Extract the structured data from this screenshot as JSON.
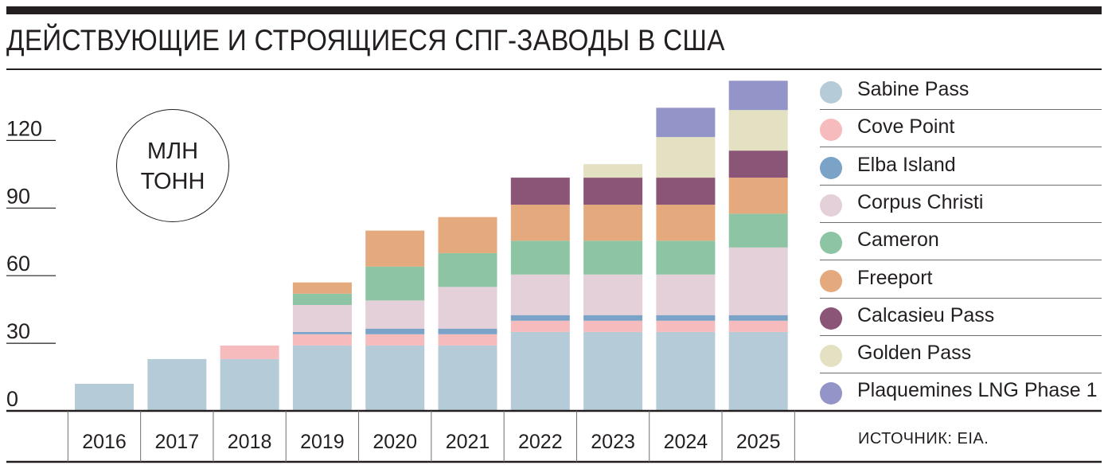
{
  "title": "ДЕЙСТВУЮЩИЕ И СТРОЯЩИЕСЯ СПГ-ЗАВОДЫ В США",
  "unit_line1": "МЛН",
  "unit_line2": "ТОНН",
  "source": "ИСТОЧНИК: EIA.",
  "chart_data": {
    "type": "bar",
    "stacked": true,
    "title": "ДЕЙСТВУЮЩИЕ И СТРОЯЩИЕСЯ СПГ-ЗАВОДЫ В США",
    "xlabel": "",
    "ylabel": "МЛН ТОНН",
    "ylim": [
      0,
      145
    ],
    "yticks": [
      0,
      30,
      60,
      90,
      120
    ],
    "categories": [
      "2016",
      "2017",
      "2018",
      "2019",
      "2020",
      "2021",
      "2022",
      "2023",
      "2024",
      "2025"
    ],
    "legend_position": "right",
    "series": [
      {
        "name": "Sabine Pass",
        "color": "#b5cbd7",
        "values": [
          12,
          23,
          23,
          29,
          29,
          29,
          35,
          35,
          35,
          35
        ]
      },
      {
        "name": "Cove Point",
        "color": "#f6bcbd",
        "values": [
          0,
          0,
          6,
          5,
          5,
          5,
          5,
          5,
          5,
          5
        ]
      },
      {
        "name": "Elba Island",
        "color": "#7ba3c8",
        "values": [
          0,
          0,
          0,
          1,
          2.5,
          2.5,
          2.5,
          2.5,
          2.5,
          2.5
        ]
      },
      {
        "name": "Corpus Christi",
        "color": "#e4d0d9",
        "values": [
          0,
          0,
          0,
          12,
          12.5,
          18.5,
          18,
          18,
          18,
          30
        ]
      },
      {
        "name": "Cameron",
        "color": "#8dc4a3",
        "values": [
          0,
          0,
          0,
          5,
          15,
          15,
          15,
          15,
          15,
          15
        ]
      },
      {
        "name": "Freeport",
        "color": "#e4aa7e",
        "values": [
          0,
          0,
          0,
          5,
          16,
          16,
          16,
          16,
          16,
          16
        ]
      },
      {
        "name": "Calcasieu Pass",
        "color": "#8a5576",
        "values": [
          0,
          0,
          0,
          0,
          0,
          0,
          12,
          12,
          12,
          12
        ]
      },
      {
        "name": "Golden Pass",
        "color": "#e4e0c2",
        "values": [
          0,
          0,
          0,
          0,
          0,
          0,
          0,
          6,
          18,
          18
        ]
      },
      {
        "name": "Plaquemines LNG Phase 1",
        "color": "#9394c8",
        "values": [
          0,
          0,
          0,
          0,
          0,
          0,
          0,
          0,
          13,
          13
        ]
      }
    ]
  }
}
